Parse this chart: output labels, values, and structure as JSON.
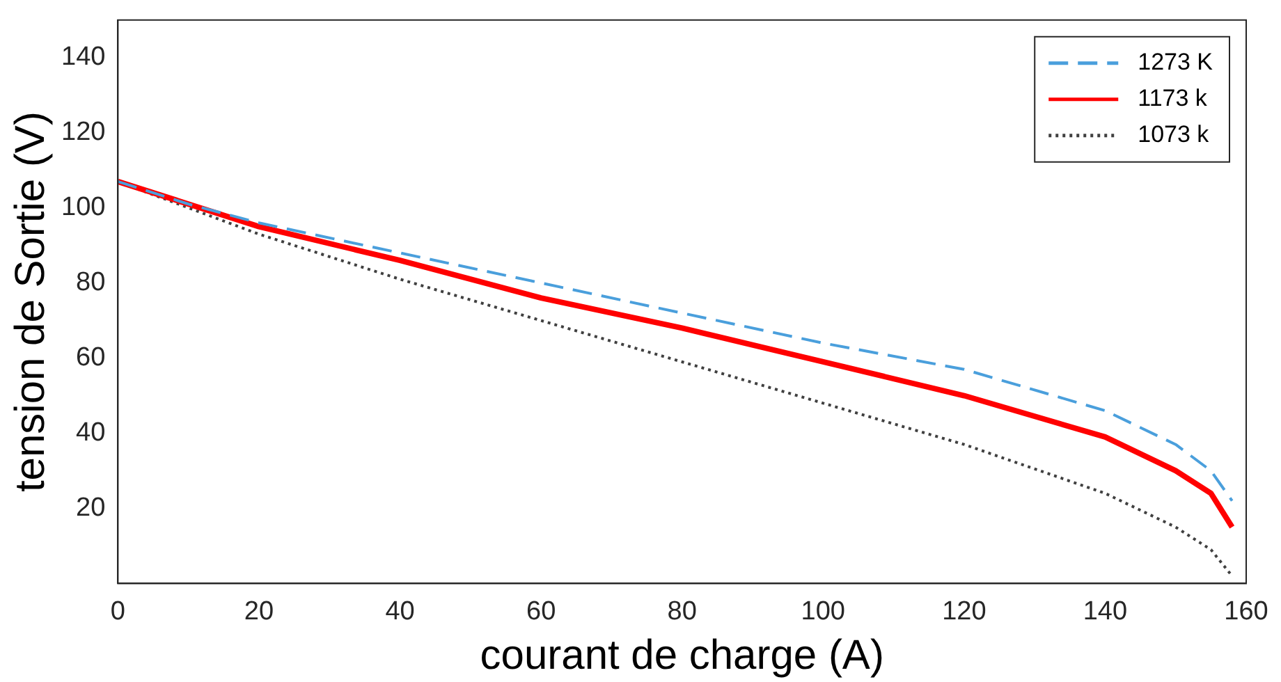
{
  "chart_data": {
    "type": "line",
    "xlabel": "courant de charge (A)",
    "ylabel": "tension de Sortie (V)",
    "xlim": [
      0,
      160
    ],
    "xticks": [
      0,
      20,
      40,
      60,
      80,
      100,
      120,
      140,
      160
    ],
    "ylim": [
      0,
      150
    ],
    "yticks": [
      20,
      40,
      60,
      80,
      100,
      120,
      140
    ],
    "grid": false,
    "legend": "top right",
    "marker": "none",
    "series": [
      {
        "name": "1273 K",
        "color": "#4a9fdc",
        "line_style": "dashed",
        "x": [
          0,
          10,
          20,
          40,
          60,
          80,
          100,
          120,
          140,
          150,
          155,
          158
        ],
        "values": [
          107,
          101,
          96,
          88,
          80,
          72,
          64,
          57,
          46,
          37,
          30,
          22
        ]
      },
      {
        "name": "1173 k",
        "color": "#ff0000",
        "line_style": "solid",
        "x": [
          0,
          10,
          20,
          40,
          60,
          80,
          100,
          120,
          140,
          150,
          155,
          158
        ],
        "values": [
          107,
          101,
          95,
          86,
          76,
          68,
          59,
          50,
          39,
          30,
          24,
          15
        ]
      },
      {
        "name": "1073 k",
        "color": "#404040",
        "line_style": "dotted",
        "x": [
          0,
          10,
          20,
          40,
          60,
          80,
          100,
          120,
          140,
          150,
          155,
          158
        ],
        "values": [
          107,
          100,
          93,
          81,
          70,
          59,
          48,
          37,
          24,
          15,
          9,
          2
        ]
      }
    ]
  }
}
